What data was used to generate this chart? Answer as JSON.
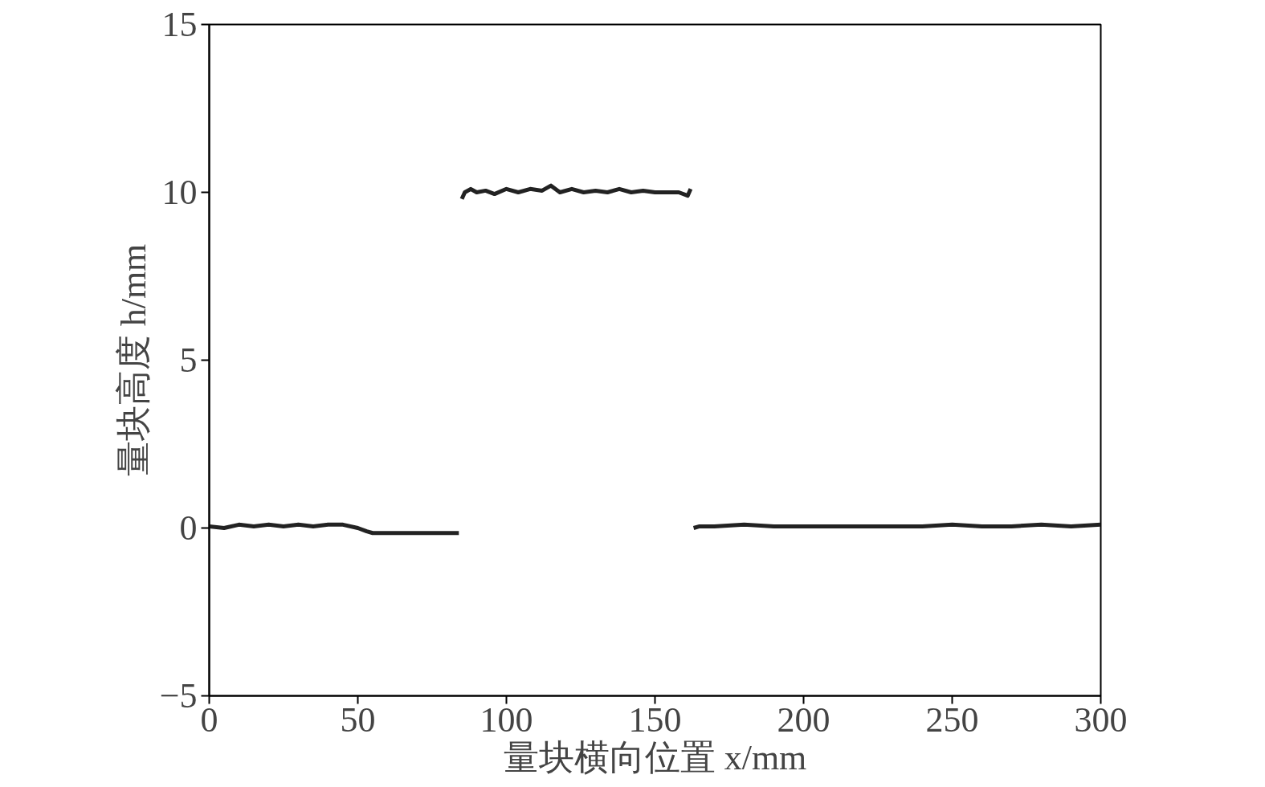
{
  "chart_data": {
    "type": "line",
    "xlabel": "量块横向位置 x/mm",
    "ylabel": "量块高度 h/mm",
    "xlim": [
      0,
      300
    ],
    "ylim": [
      -5,
      15
    ],
    "xticks": [
      0,
      50,
      100,
      150,
      200,
      250,
      300
    ],
    "yticks": [
      -5,
      0,
      5,
      10,
      15
    ],
    "marker": "none",
    "line_style": "solid",
    "series": [
      {
        "color": "#222222",
        "x": [
          0,
          5,
          10,
          15,
          20,
          25,
          30,
          35,
          40,
          45,
          50,
          53,
          55,
          60,
          65,
          70,
          75,
          80,
          84,
          84.5,
          85,
          86,
          88,
          90,
          93,
          96,
          100,
          104,
          108,
          112,
          115,
          118,
          122,
          126,
          130,
          134,
          138,
          142,
          146,
          150,
          154,
          158,
          161,
          162,
          162.5,
          163,
          165,
          170,
          180,
          190,
          200,
          210,
          220,
          230,
          240,
          250,
          260,
          270,
          280,
          290,
          300
        ],
        "values": [
          0.05,
          0.0,
          0.1,
          0.05,
          0.1,
          0.05,
          0.1,
          0.05,
          0.1,
          0.1,
          0.0,
          -0.1,
          -0.15,
          -0.15,
          -0.15,
          -0.15,
          -0.15,
          -0.15,
          -0.15,
          null,
          9.8,
          10.0,
          10.1,
          10.0,
          10.05,
          9.95,
          10.1,
          10.0,
          10.1,
          10.05,
          10.2,
          10.0,
          10.1,
          10.0,
          10.05,
          10.0,
          10.1,
          10.0,
          10.05,
          10.0,
          10.0,
          10.0,
          9.9,
          10.1,
          null,
          0.0,
          0.05,
          0.05,
          0.1,
          0.05,
          0.05,
          0.05,
          0.05,
          0.05,
          0.05,
          0.1,
          0.05,
          0.05,
          0.1,
          0.05,
          0.1
        ]
      }
    ]
  }
}
